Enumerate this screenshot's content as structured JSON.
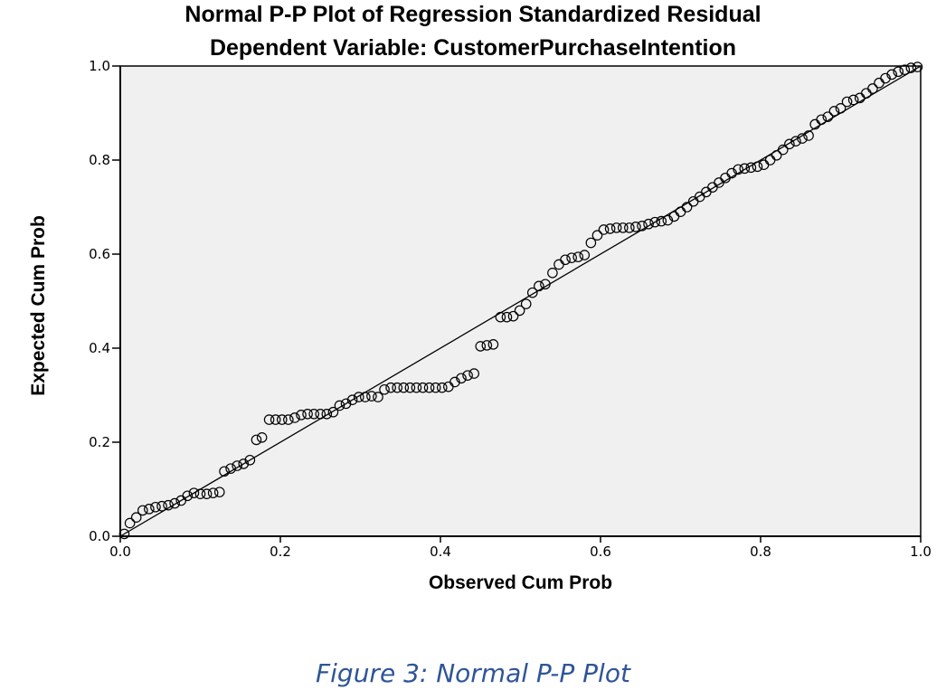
{
  "chart_data": {
    "type": "scatter",
    "title": "Normal P-P Plot of Regression Standardized Residual",
    "subtitle": "Dependent Variable: CustomerPurchaseIntention",
    "xlabel": "Observed Cum Prob",
    "ylabel": "Expected Cum Prob",
    "xlim": [
      0,
      1
    ],
    "ylim": [
      0,
      1
    ],
    "xticks": [
      "0.0",
      "0.2",
      "0.4",
      "0.6",
      "0.8",
      "1.0"
    ],
    "yticks": [
      "0.0",
      "0.2",
      "0.4",
      "0.6",
      "0.8",
      "1.0"
    ],
    "grid": false,
    "colors": {
      "plot_background": "#f0f0f0",
      "marker": "#000000",
      "reference_line": "#000000"
    },
    "reference_line": {
      "from": [
        0,
        0
      ],
      "to": [
        1,
        1
      ]
    },
    "points": [
      [
        0.005,
        0.005
      ],
      [
        0.012,
        0.028
      ],
      [
        0.02,
        0.04
      ],
      [
        0.028,
        0.055
      ],
      [
        0.036,
        0.058
      ],
      [
        0.044,
        0.062
      ],
      [
        0.052,
        0.064
      ],
      [
        0.06,
        0.066
      ],
      [
        0.068,
        0.07
      ],
      [
        0.076,
        0.076
      ],
      [
        0.084,
        0.086
      ],
      [
        0.092,
        0.092
      ],
      [
        0.1,
        0.09
      ],
      [
        0.108,
        0.09
      ],
      [
        0.116,
        0.092
      ],
      [
        0.124,
        0.094
      ],
      [
        0.13,
        0.138
      ],
      [
        0.138,
        0.144
      ],
      [
        0.146,
        0.15
      ],
      [
        0.154,
        0.154
      ],
      [
        0.162,
        0.162
      ],
      [
        0.17,
        0.205
      ],
      [
        0.177,
        0.21
      ],
      [
        0.186,
        0.248
      ],
      [
        0.194,
        0.248
      ],
      [
        0.202,
        0.248
      ],
      [
        0.21,
        0.248
      ],
      [
        0.218,
        0.252
      ],
      [
        0.226,
        0.258
      ],
      [
        0.234,
        0.26
      ],
      [
        0.242,
        0.26
      ],
      [
        0.25,
        0.26
      ],
      [
        0.258,
        0.26
      ],
      [
        0.266,
        0.264
      ],
      [
        0.274,
        0.278
      ],
      [
        0.282,
        0.282
      ],
      [
        0.29,
        0.29
      ],
      [
        0.298,
        0.296
      ],
      [
        0.306,
        0.296
      ],
      [
        0.314,
        0.298
      ],
      [
        0.322,
        0.296
      ],
      [
        0.33,
        0.312
      ],
      [
        0.338,
        0.316
      ],
      [
        0.346,
        0.316
      ],
      [
        0.354,
        0.316
      ],
      [
        0.362,
        0.316
      ],
      [
        0.37,
        0.316
      ],
      [
        0.378,
        0.316
      ],
      [
        0.386,
        0.316
      ],
      [
        0.394,
        0.316
      ],
      [
        0.402,
        0.316
      ],
      [
        0.41,
        0.318
      ],
      [
        0.418,
        0.328
      ],
      [
        0.426,
        0.336
      ],
      [
        0.434,
        0.342
      ],
      [
        0.442,
        0.346
      ],
      [
        0.45,
        0.404
      ],
      [
        0.458,
        0.406
      ],
      [
        0.466,
        0.408
      ],
      [
        0.475,
        0.466
      ],
      [
        0.483,
        0.466
      ],
      [
        0.491,
        0.468
      ],
      [
        0.499,
        0.48
      ],
      [
        0.507,
        0.494
      ],
      [
        0.515,
        0.518
      ],
      [
        0.523,
        0.532
      ],
      [
        0.531,
        0.536
      ],
      [
        0.54,
        0.56
      ],
      [
        0.548,
        0.578
      ],
      [
        0.556,
        0.588
      ],
      [
        0.564,
        0.592
      ],
      [
        0.572,
        0.594
      ],
      [
        0.58,
        0.598
      ],
      [
        0.588,
        0.624
      ],
      [
        0.596,
        0.64
      ],
      [
        0.604,
        0.652
      ],
      [
        0.612,
        0.654
      ],
      [
        0.62,
        0.656
      ],
      [
        0.628,
        0.656
      ],
      [
        0.636,
        0.656
      ],
      [
        0.644,
        0.658
      ],
      [
        0.652,
        0.66
      ],
      [
        0.66,
        0.664
      ],
      [
        0.668,
        0.668
      ],
      [
        0.676,
        0.67
      ],
      [
        0.684,
        0.672
      ],
      [
        0.692,
        0.68
      ],
      [
        0.7,
        0.69
      ],
      [
        0.708,
        0.7
      ],
      [
        0.716,
        0.712
      ],
      [
        0.724,
        0.722
      ],
      [
        0.732,
        0.732
      ],
      [
        0.74,
        0.742
      ],
      [
        0.748,
        0.752
      ],
      [
        0.756,
        0.762
      ],
      [
        0.764,
        0.772
      ],
      [
        0.772,
        0.78
      ],
      [
        0.78,
        0.782
      ],
      [
        0.788,
        0.784
      ],
      [
        0.796,
        0.786
      ],
      [
        0.804,
        0.79
      ],
      [
        0.812,
        0.8
      ],
      [
        0.82,
        0.81
      ],
      [
        0.828,
        0.822
      ],
      [
        0.836,
        0.834
      ],
      [
        0.844,
        0.84
      ],
      [
        0.852,
        0.846
      ],
      [
        0.86,
        0.852
      ],
      [
        0.868,
        0.876
      ],
      [
        0.876,
        0.886
      ],
      [
        0.884,
        0.892
      ],
      [
        0.892,
        0.904
      ],
      [
        0.9,
        0.91
      ],
      [
        0.908,
        0.924
      ],
      [
        0.916,
        0.928
      ],
      [
        0.924,
        0.932
      ],
      [
        0.932,
        0.942
      ],
      [
        0.94,
        0.952
      ],
      [
        0.948,
        0.964
      ],
      [
        0.956,
        0.974
      ],
      [
        0.964,
        0.982
      ],
      [
        0.972,
        0.988
      ],
      [
        0.98,
        0.992
      ],
      [
        0.988,
        0.996
      ],
      [
        0.996,
        0.998
      ]
    ]
  },
  "caption": "Figure 3: Normal P-P Plot"
}
